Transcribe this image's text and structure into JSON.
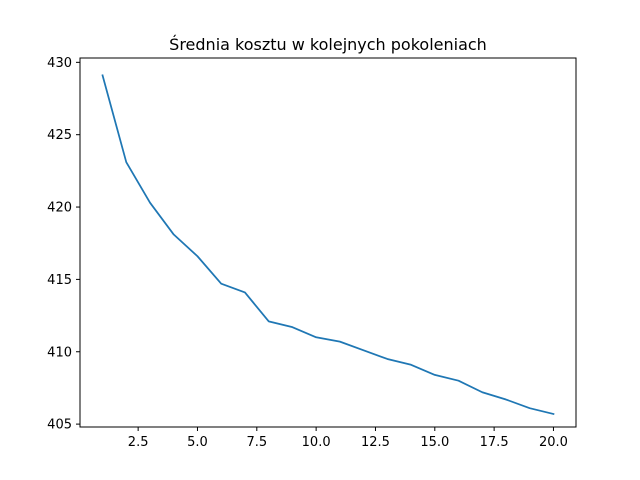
{
  "chart_data": {
    "type": "line",
    "title": "Średnia kosztu w kolejnych pokoleniach",
    "xlabel": "",
    "ylabel": "",
    "xlim": [
      0.05,
      20.95
    ],
    "ylim": [
      404.8,
      430.3
    ],
    "xticks": [
      2.5,
      5.0,
      7.5,
      10.0,
      12.5,
      15.0,
      17.5,
      20.0
    ],
    "xtick_labels": [
      "2.5",
      "5.0",
      "7.5",
      "10.0",
      "12.5",
      "15.0",
      "17.5",
      "20.0"
    ],
    "yticks": [
      405,
      410,
      415,
      420,
      425,
      430
    ],
    "ytick_labels": [
      "405",
      "410",
      "415",
      "420",
      "425",
      "430"
    ],
    "grid": false,
    "series": [
      {
        "color": "#1f77b4",
        "x": [
          1,
          2,
          3,
          4,
          5,
          6,
          7,
          8,
          9,
          10,
          11,
          12,
          13,
          14,
          15,
          16,
          17,
          18,
          19,
          20
        ],
        "y": [
          429.1,
          423.1,
          420.3,
          418.1,
          416.6,
          414.7,
          414.1,
          412.1,
          411.7,
          411.0,
          410.7,
          410.1,
          409.5,
          409.1,
          408.4,
          408.0,
          407.2,
          406.7,
          406.1,
          405.7
        ]
      }
    ]
  }
}
